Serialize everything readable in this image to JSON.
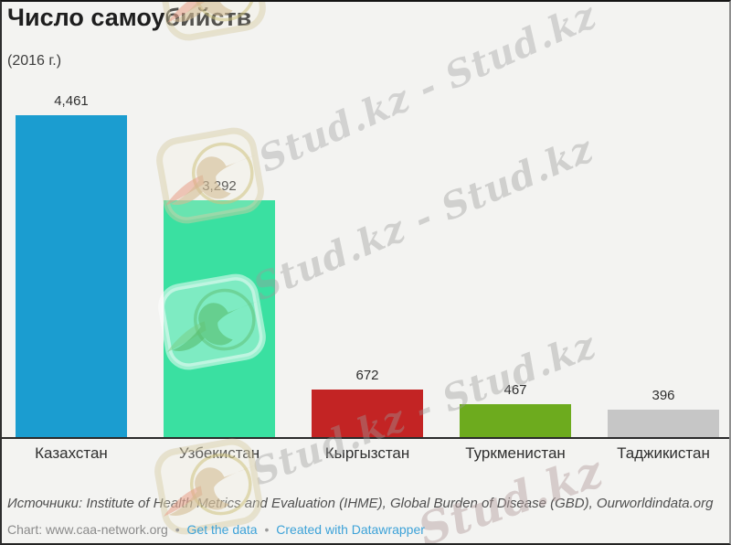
{
  "header": {
    "title": "Число самоубийств",
    "subtitle": "(2016 г.)"
  },
  "chart_data": {
    "type": "bar",
    "title": "Число самоубийств",
    "subtitle": "(2016 г.)",
    "categories": [
      "Казахстан",
      "Узбекистан",
      "Кыргызстан",
      "Туркменистан",
      "Таджикистан"
    ],
    "values": [
      4461,
      3292,
      672,
      467,
      396
    ],
    "value_labels": [
      "4,461",
      "3,292",
      "672",
      "467",
      "396"
    ],
    "bar_colors": [
      "#1b9dd0",
      "#3ae0a1",
      "#c32424",
      "#6dab1e",
      "#c6c6c6"
    ],
    "xlabel": "",
    "ylabel": "",
    "ylim": [
      0,
      4461
    ],
    "grid": false,
    "legend": "none",
    "value_label_position": "above-bar"
  },
  "footer": {
    "sources": "Источники: Institute of Health Metrics and Evaluation (IHME), Global Burden of Disease (GBD), Ourworldindata.org",
    "chart_credit": "Chart: www.caa-network.org",
    "separator": "•",
    "links": [
      {
        "label": "Get the data"
      },
      {
        "label": "Created with Datawrapper"
      }
    ],
    "link_color": "#3da2d8"
  },
  "watermark": {
    "brand": "Stud.kz",
    "lines": [
      "Stud.kz - Stud.kz",
      "Stud.kz - Stud.kz",
      "Stud.kz - Stud.kz",
      "Stud.kz"
    ],
    "text_color": "#bdbdbd",
    "logo": "hummingbird-camera-logo"
  }
}
